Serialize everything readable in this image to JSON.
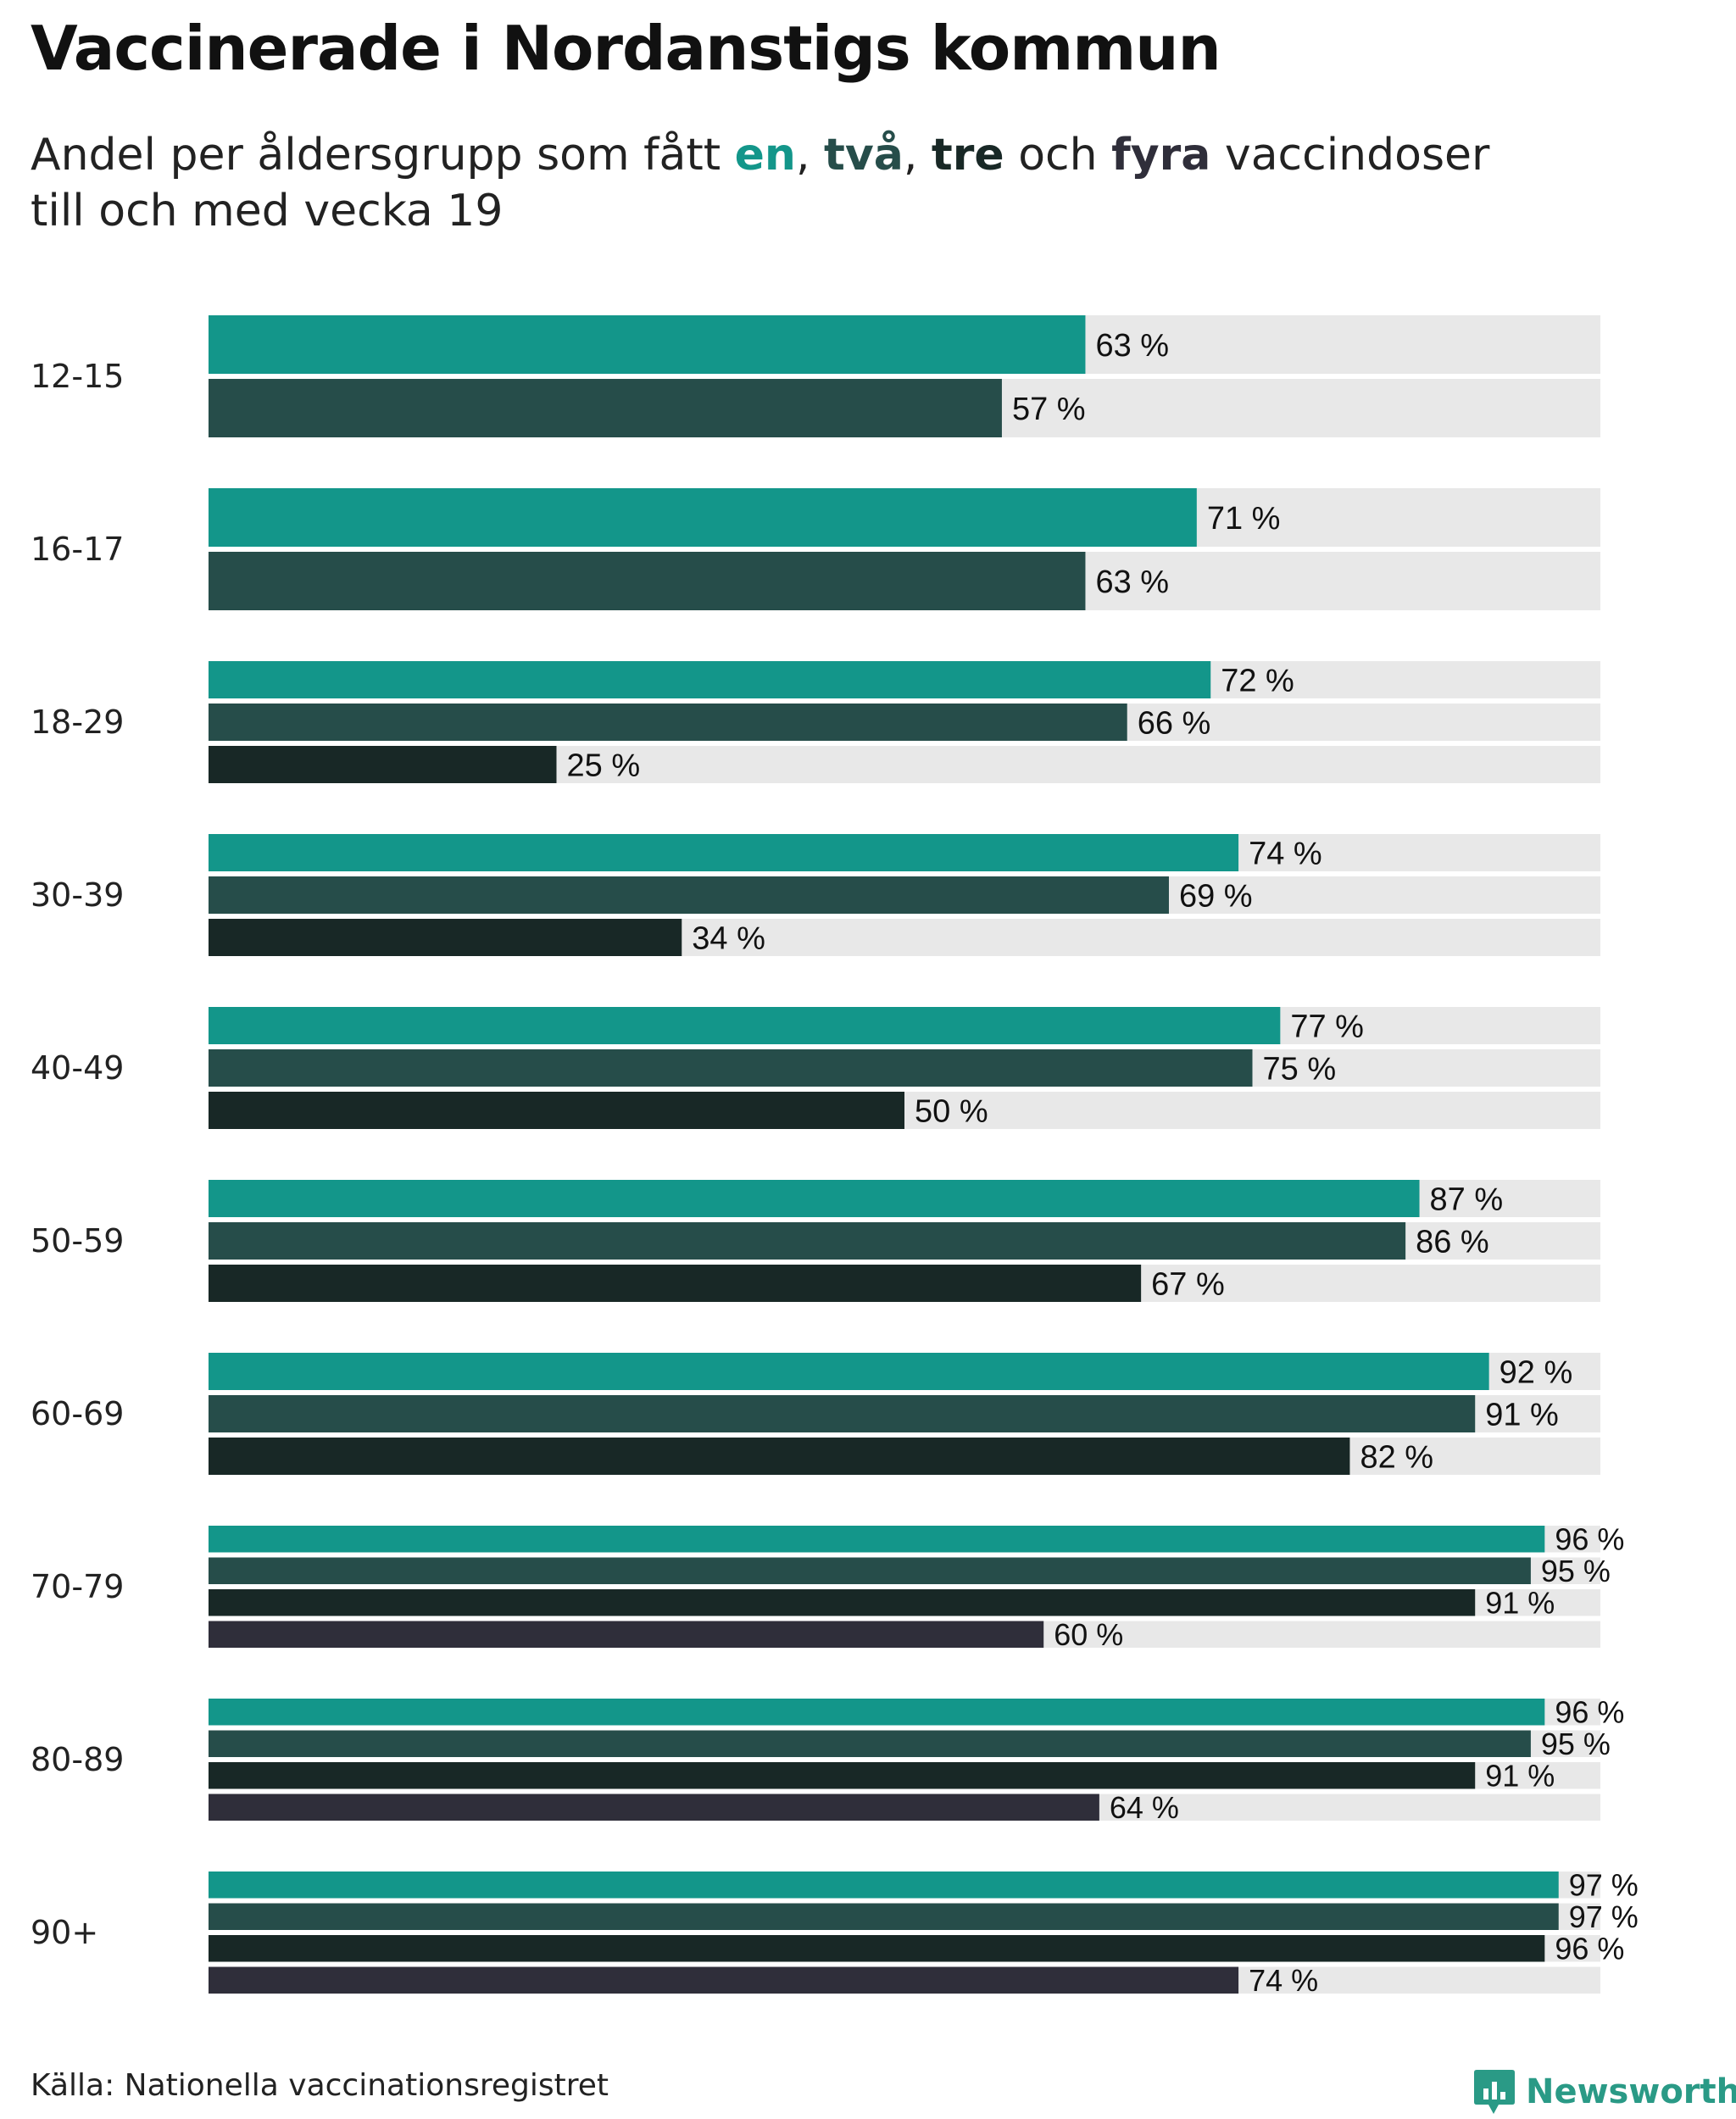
{
  "header": {
    "title": "Vaccinerade i Nordanstigs kommun",
    "subtitle_pre": "Andel per åldersgrupp som fått ",
    "dose_one": "en",
    "sep_1": ", ",
    "dose_two": "två",
    "sep_2": ", ",
    "dose_three": "tre",
    "sep_3": " och ",
    "dose_four": "fyra",
    "subtitle_post": " vaccindoser",
    "subtitle_line2": "till och med vecka 19"
  },
  "footer": {
    "source": "Källa: Nationella vaccinationsregistret",
    "brand": "Newsworthy"
  },
  "colors": {
    "one_dose": "#13968a",
    "two_doses": "#264d4a",
    "three_doses": "#182826",
    "four_doses": "#2f2e3a",
    "track": "#e8e8e8",
    "brand": "#2a9a86"
  },
  "chart_data": {
    "type": "bar",
    "orientation": "horizontal",
    "title": "Vaccinerade i Nordanstigs kommun",
    "subtitle": "Andel per åldersgrupp som fått en, två, tre och fyra vaccindoser till och med vecka 19",
    "value_suffix": " %",
    "xlim": [
      0,
      100
    ],
    "grid": false,
    "categories": [
      "12-15",
      "16-17",
      "18-29",
      "30-39",
      "40-49",
      "50-59",
      "60-69",
      "70-79",
      "80-89",
      "90+"
    ],
    "series": [
      {
        "name": "en",
        "values": [
          63,
          71,
          72,
          74,
          77,
          87,
          92,
          96,
          96,
          97
        ]
      },
      {
        "name": "två",
        "values": [
          57,
          63,
          66,
          69,
          75,
          86,
          91,
          95,
          95,
          97
        ]
      },
      {
        "name": "tre",
        "values": [
          null,
          null,
          25,
          34,
          50,
          67,
          82,
          91,
          91,
          96
        ]
      },
      {
        "name": "fyra",
        "values": [
          null,
          null,
          null,
          null,
          null,
          null,
          null,
          60,
          64,
          74
        ]
      }
    ]
  }
}
